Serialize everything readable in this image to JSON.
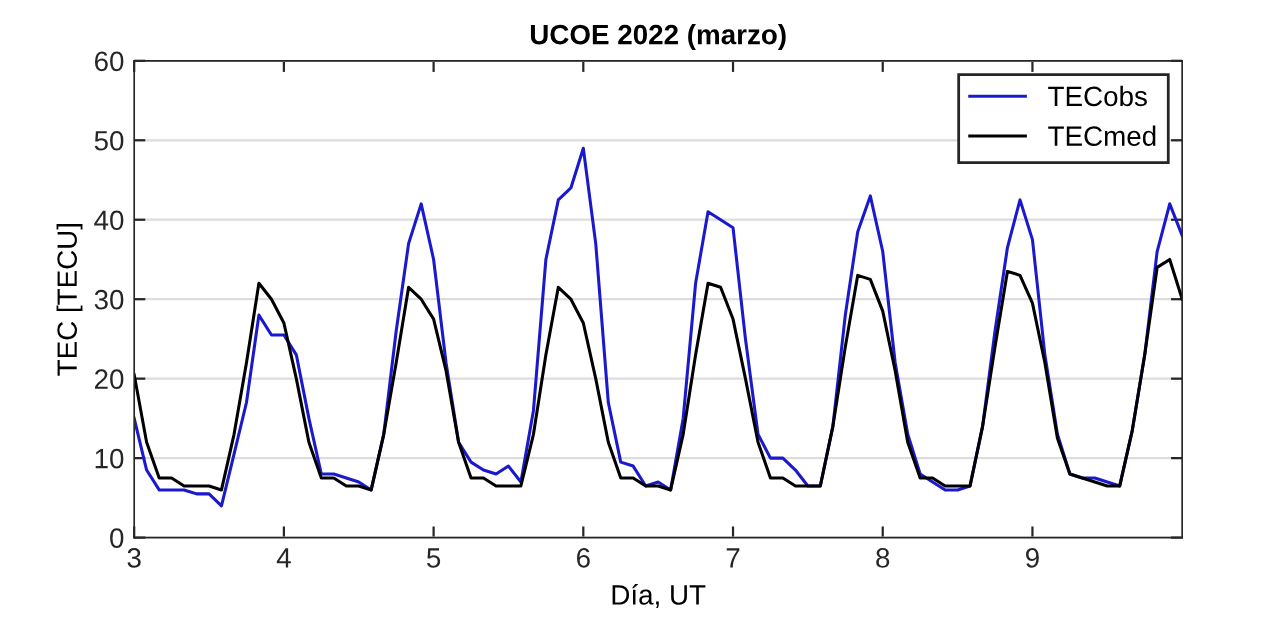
{
  "chart_data": {
    "type": "line",
    "title": "UCOE 2022 (marzo)",
    "xlabel": "Día, UT",
    "ylabel": "TEC [TECU]",
    "x": [
      3.0,
      3.083,
      3.167,
      3.25,
      3.333,
      3.417,
      3.5,
      3.583,
      3.667,
      3.75,
      3.833,
      3.917,
      4.0,
      4.083,
      4.167,
      4.25,
      4.333,
      4.417,
      4.5,
      4.583,
      4.667,
      4.75,
      4.833,
      4.917,
      5.0,
      5.083,
      5.167,
      5.25,
      5.333,
      5.417,
      5.5,
      5.583,
      5.667,
      5.75,
      5.833,
      5.917,
      6.0,
      6.083,
      6.167,
      6.25,
      6.333,
      6.417,
      6.5,
      6.583,
      6.667,
      6.75,
      6.833,
      6.917,
      7.0,
      7.083,
      7.167,
      7.25,
      7.333,
      7.417,
      7.5,
      7.583,
      7.667,
      7.75,
      7.833,
      7.917,
      8.0,
      8.083,
      8.167,
      8.25,
      8.333,
      8.417,
      8.5,
      8.583,
      8.667,
      8.75,
      8.833,
      8.917,
      9.0,
      9.083,
      9.167,
      9.25,
      9.333,
      9.417,
      9.5,
      9.583,
      9.667,
      9.75,
      9.833,
      9.917,
      10.0
    ],
    "series": [
      {
        "name": "TECobs",
        "color": "#1a1acc",
        "values": [
          15,
          8.5,
          6,
          6,
          6,
          5.5,
          5.5,
          4,
          10.5,
          17,
          28,
          25.5,
          25.5,
          23,
          15,
          8,
          8,
          7.5,
          7,
          6,
          13,
          26,
          37,
          42,
          35,
          22,
          12,
          9.5,
          8.5,
          8,
          9,
          7,
          16,
          35,
          42.5,
          44,
          49,
          37,
          17,
          9.5,
          9,
          6.5,
          7,
          6,
          15,
          32,
          41,
          40,
          39,
          25,
          13,
          10,
          10,
          8.5,
          6.5,
          6.5,
          14,
          28,
          38.5,
          43,
          36,
          22,
          13,
          8,
          7,
          6,
          6,
          6.5,
          14,
          26,
          36.5,
          42.5,
          37.5,
          23,
          13,
          8,
          7.5,
          7.5,
          7,
          6.5,
          13.5,
          23,
          36,
          42,
          38
        ]
      },
      {
        "name": "TECmed",
        "color": "#000000",
        "values": [
          20.5,
          12,
          7.5,
          7.5,
          6.5,
          6.5,
          6.5,
          6,
          13,
          22,
          32,
          30,
          27,
          20,
          12,
          7.5,
          7.5,
          6.5,
          6.5,
          6,
          13,
          22,
          31.5,
          30,
          27.5,
          21,
          12,
          7.5,
          7.5,
          6.5,
          6.5,
          6.5,
          13,
          23,
          31.5,
          30,
          27,
          20,
          12,
          7.5,
          7.5,
          6.5,
          6.5,
          6,
          13,
          23,
          32,
          31.5,
          27.5,
          20,
          12,
          7.5,
          7.5,
          6.5,
          6.5,
          6.5,
          14,
          24,
          33,
          32.5,
          28.5,
          21,
          12,
          7.5,
          7.5,
          6.5,
          6.5,
          6.5,
          14,
          24,
          33.5,
          33,
          29.5,
          22,
          12.5,
          8,
          7.5,
          7,
          6.5,
          6.5,
          13.5,
          23,
          34,
          35,
          30
        ]
      }
    ],
    "xlim": [
      3,
      10
    ],
    "xticks": [
      3,
      4,
      5,
      6,
      7,
      8,
      9
    ],
    "ylim": [
      0,
      60
    ],
    "yticks": [
      0,
      10,
      20,
      30,
      40,
      50,
      60
    ],
    "grid": "y",
    "legend": "top right",
    "line_style": "solid",
    "marker": "none"
  }
}
